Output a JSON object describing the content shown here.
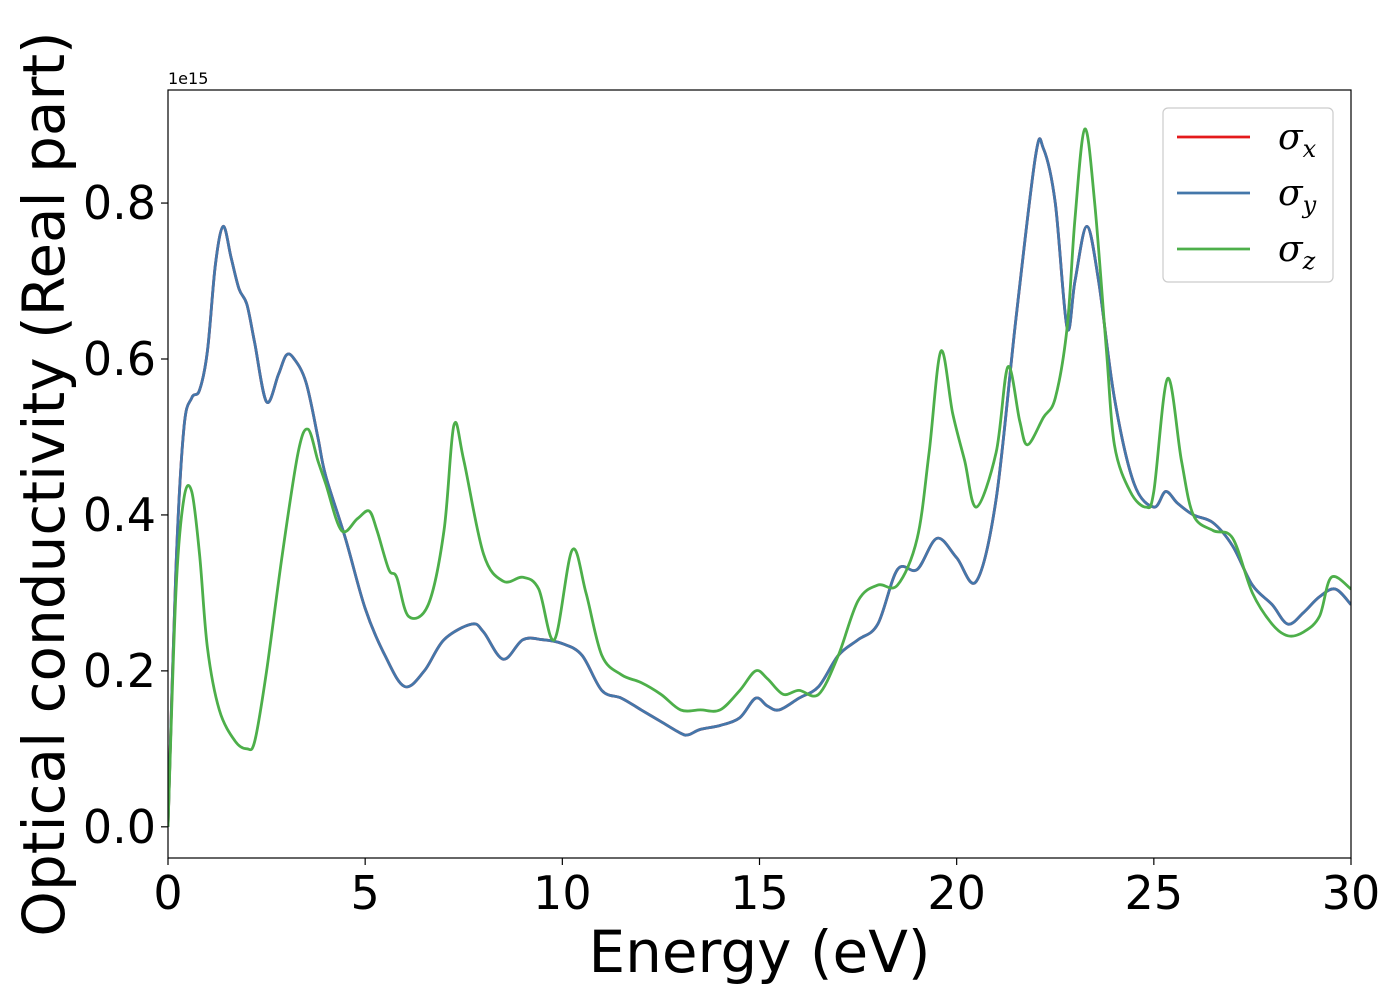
{
  "chart_data": {
    "type": "line",
    "xlabel": "Energy (eV)",
    "ylabel": "Optical conductivity (Real part)",
    "y_offset_text": "1e15",
    "xlim": [
      0,
      30
    ],
    "ylim": [
      -0.04,
      0.945
    ],
    "xticks": [
      0,
      5,
      10,
      15,
      20,
      25,
      30
    ],
    "xtick_labels": [
      "0",
      "5",
      "10",
      "15",
      "20",
      "25",
      "30"
    ],
    "yticks": [
      0.0,
      0.2,
      0.4,
      0.6,
      0.8
    ],
    "ytick_labels": [
      "0.0",
      "0.2",
      "0.4",
      "0.6",
      "0.8"
    ],
    "grid": false,
    "legend_position": "top-right",
    "series": [
      {
        "name": "σx",
        "symbol": "σ",
        "subscript": "x",
        "color": "#e41a1c",
        "x": [
          0,
          0.2,
          0.4,
          0.6,
          0.8,
          1.0,
          1.2,
          1.4,
          1.6,
          1.8,
          2.0,
          2.2,
          2.5,
          2.8,
          3.0,
          3.2,
          3.5,
          3.8,
          4.0,
          4.5,
          5.0,
          5.5,
          6.0,
          6.5,
          7.0,
          7.7,
          8.0,
          8.5,
          9.0,
          9.5,
          10.0,
          10.5,
          11.0,
          11.5,
          12.0,
          12.5,
          13.0,
          13.2,
          13.5,
          14.0,
          14.5,
          14.9,
          15.2,
          15.5,
          16.0,
          16.5,
          17.0,
          17.5,
          18.0,
          18.5,
          19.0,
          19.5,
          20.0,
          20.5,
          21.0,
          21.5,
          22.0,
          22.2,
          22.5,
          22.8,
          23.0,
          23.3,
          23.6,
          24.0,
          24.5,
          25.0,
          25.3,
          25.6,
          26.0,
          26.5,
          27.0,
          27.5,
          28.0,
          28.4,
          28.8,
          29.2,
          29.6,
          30.0
        ],
        "y": [
          0.0,
          0.33,
          0.51,
          0.55,
          0.56,
          0.61,
          0.72,
          0.77,
          0.73,
          0.69,
          0.67,
          0.62,
          0.545,
          0.58,
          0.605,
          0.6,
          0.57,
          0.5,
          0.45,
          0.37,
          0.28,
          0.22,
          0.18,
          0.2,
          0.24,
          0.26,
          0.25,
          0.215,
          0.24,
          0.24,
          0.235,
          0.22,
          0.175,
          0.165,
          0.15,
          0.135,
          0.12,
          0.118,
          0.125,
          0.13,
          0.14,
          0.165,
          0.155,
          0.15,
          0.165,
          0.18,
          0.22,
          0.24,
          0.26,
          0.33,
          0.33,
          0.37,
          0.345,
          0.315,
          0.42,
          0.65,
          0.86,
          0.87,
          0.8,
          0.64,
          0.7,
          0.77,
          0.7,
          0.55,
          0.44,
          0.41,
          0.43,
          0.415,
          0.4,
          0.39,
          0.36,
          0.31,
          0.285,
          0.26,
          0.275,
          0.295,
          0.305,
          0.285
        ]
      },
      {
        "name": "σy",
        "symbol": "σ",
        "subscript": "y",
        "color": "#4477aa",
        "x": [
          0,
          0.2,
          0.4,
          0.6,
          0.8,
          1.0,
          1.2,
          1.4,
          1.6,
          1.8,
          2.0,
          2.2,
          2.5,
          2.8,
          3.0,
          3.2,
          3.5,
          3.8,
          4.0,
          4.5,
          5.0,
          5.5,
          6.0,
          6.5,
          7.0,
          7.7,
          8.0,
          8.5,
          9.0,
          9.5,
          10.0,
          10.5,
          11.0,
          11.5,
          12.0,
          12.5,
          13.0,
          13.2,
          13.5,
          14.0,
          14.5,
          14.9,
          15.2,
          15.5,
          16.0,
          16.5,
          17.0,
          17.5,
          18.0,
          18.5,
          19.0,
          19.5,
          20.0,
          20.5,
          21.0,
          21.5,
          22.0,
          22.2,
          22.5,
          22.8,
          23.0,
          23.3,
          23.6,
          24.0,
          24.5,
          25.0,
          25.3,
          25.6,
          26.0,
          26.5,
          27.0,
          27.5,
          28.0,
          28.4,
          28.8,
          29.2,
          29.6,
          30.0
        ],
        "y": [
          0.0,
          0.33,
          0.51,
          0.55,
          0.56,
          0.61,
          0.72,
          0.77,
          0.73,
          0.69,
          0.67,
          0.62,
          0.545,
          0.58,
          0.605,
          0.6,
          0.57,
          0.5,
          0.45,
          0.37,
          0.28,
          0.22,
          0.18,
          0.2,
          0.24,
          0.26,
          0.25,
          0.215,
          0.24,
          0.24,
          0.235,
          0.22,
          0.175,
          0.165,
          0.15,
          0.135,
          0.12,
          0.118,
          0.125,
          0.13,
          0.14,
          0.165,
          0.155,
          0.15,
          0.165,
          0.18,
          0.22,
          0.24,
          0.26,
          0.33,
          0.33,
          0.37,
          0.345,
          0.315,
          0.42,
          0.65,
          0.86,
          0.87,
          0.8,
          0.64,
          0.7,
          0.77,
          0.7,
          0.55,
          0.44,
          0.41,
          0.43,
          0.415,
          0.4,
          0.39,
          0.36,
          0.31,
          0.285,
          0.26,
          0.275,
          0.295,
          0.305,
          0.285
        ]
      },
      {
        "name": "σz",
        "symbol": "σ",
        "subscript": "z",
        "color": "#4daf4a",
        "x": [
          0,
          0.2,
          0.4,
          0.6,
          0.8,
          1.0,
          1.3,
          1.7,
          2.0,
          2.2,
          2.5,
          2.9,
          3.3,
          3.55,
          3.8,
          4.0,
          4.4,
          4.8,
          5.1,
          5.3,
          5.6,
          5.8,
          6.1,
          6.6,
          7.0,
          7.25,
          7.5,
          8.0,
          8.5,
          9.0,
          9.4,
          9.8,
          10.25,
          10.6,
          11.0,
          11.5,
          12.0,
          12.5,
          13.0,
          13.5,
          14.0,
          14.5,
          14.9,
          15.2,
          15.6,
          16.0,
          16.5,
          17.0,
          17.5,
          18.0,
          18.5,
          19.0,
          19.3,
          19.6,
          19.9,
          20.2,
          20.5,
          21.0,
          21.3,
          21.6,
          21.8,
          22.2,
          22.5,
          22.8,
          23.0,
          23.25,
          23.5,
          23.8,
          24.0,
          24.4,
          24.8,
          25.0,
          25.35,
          25.7,
          26.0,
          26.5,
          27.0,
          27.5,
          28.0,
          28.4,
          28.8,
          29.2,
          29.5,
          30.0
        ],
        "y": [
          0.0,
          0.3,
          0.42,
          0.43,
          0.35,
          0.23,
          0.15,
          0.11,
          0.1,
          0.11,
          0.2,
          0.35,
          0.48,
          0.51,
          0.47,
          0.44,
          0.38,
          0.395,
          0.405,
          0.38,
          0.33,
          0.32,
          0.27,
          0.285,
          0.38,
          0.515,
          0.47,
          0.35,
          0.315,
          0.32,
          0.305,
          0.24,
          0.355,
          0.3,
          0.22,
          0.195,
          0.185,
          0.17,
          0.15,
          0.15,
          0.15,
          0.175,
          0.2,
          0.19,
          0.17,
          0.175,
          0.17,
          0.22,
          0.29,
          0.31,
          0.31,
          0.37,
          0.48,
          0.61,
          0.53,
          0.47,
          0.41,
          0.48,
          0.59,
          0.52,
          0.49,
          0.525,
          0.55,
          0.64,
          0.78,
          0.895,
          0.8,
          0.61,
          0.49,
          0.43,
          0.41,
          0.43,
          0.575,
          0.47,
          0.4,
          0.38,
          0.37,
          0.3,
          0.26,
          0.245,
          0.25,
          0.27,
          0.32,
          0.305
        ]
      }
    ]
  }
}
